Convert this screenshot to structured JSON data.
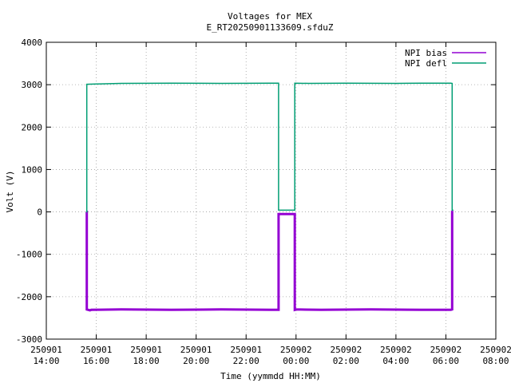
{
  "chart_data": {
    "type": "line",
    "title": "Voltages for MEX",
    "subtitle": "E_RT20250901133609.sfduZ",
    "xlabel": "Time (yymmdd HH:MM)",
    "ylabel": "Volt (V)",
    "xlim": [
      14,
      32
    ],
    "ylim": [
      -3000,
      4000
    ],
    "x_units": "hours since 250901 00:00",
    "yticks": [
      -3000,
      -2000,
      -1000,
      0,
      1000,
      2000,
      3000,
      4000
    ],
    "xticks": [
      {
        "value": 14,
        "date": "250901",
        "time": "14:00"
      },
      {
        "value": 16,
        "date": "250901",
        "time": "16:00"
      },
      {
        "value": 18,
        "date": "250901",
        "time": "18:00"
      },
      {
        "value": 20,
        "date": "250901",
        "time": "20:00"
      },
      {
        "value": 22,
        "date": "250901",
        "time": "22:00"
      },
      {
        "value": 24,
        "date": "250902",
        "time": "00:00"
      },
      {
        "value": 26,
        "date": "250902",
        "time": "02:00"
      },
      {
        "value": 28,
        "date": "250902",
        "time": "04:00"
      },
      {
        "value": 30,
        "date": "250902",
        "time": "06:00"
      },
      {
        "value": 32,
        "date": "250902",
        "time": "08:00"
      }
    ],
    "grid": true,
    "legend_position": "top-right",
    "series": [
      {
        "name": "NPI bias",
        "color": "#9400d3",
        "x": [
          15.6,
          15.62,
          15.62,
          15.75,
          15.8,
          17.0,
          19.0,
          21.0,
          23.0,
          23.3,
          23.3,
          23.95,
          23.95,
          24.0,
          25.0,
          27.0,
          29.0,
          30.2,
          30.25,
          30.25,
          30.3
        ],
        "y": [
          0,
          0,
          -2300,
          -2320,
          -2310,
          -2300,
          -2310,
          -2300,
          -2310,
          -2310,
          -50,
          -50,
          -2310,
          -2300,
          -2310,
          -2300,
          -2310,
          -2310,
          -2300,
          0,
          0
        ]
      },
      {
        "name": "NPI defl",
        "color": "#009e73",
        "x": [
          15.6,
          15.62,
          15.62,
          16.0,
          17.0,
          19.0,
          21.0,
          23.0,
          23.3,
          23.3,
          23.95,
          23.95,
          24.5,
          26.0,
          28.0,
          29.0,
          30.2,
          30.25,
          30.25,
          30.3
        ],
        "y": [
          0,
          0,
          3010,
          3015,
          3030,
          3035,
          3030,
          3035,
          3035,
          40,
          40,
          3035,
          3030,
          3035,
          3030,
          3035,
          3035,
          3030,
          40,
          40
        ]
      }
    ]
  }
}
